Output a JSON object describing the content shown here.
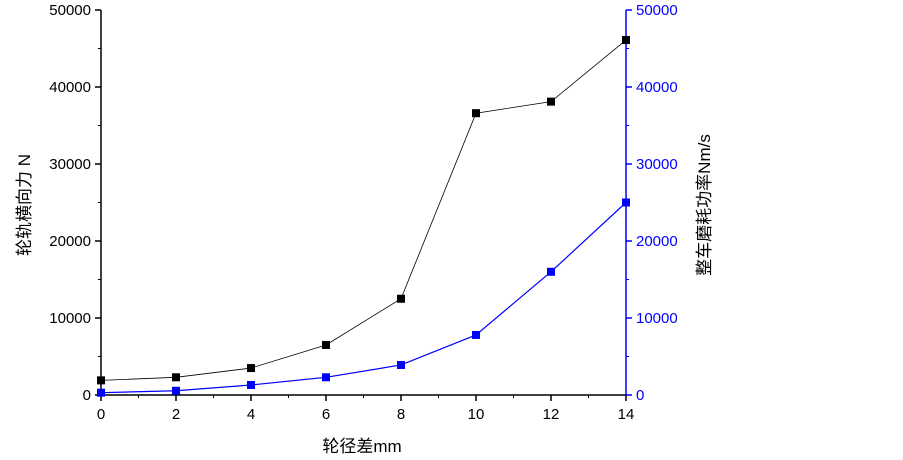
{
  "chart_data": {
    "type": "line",
    "xlabel": "轮径差mm",
    "ylabel_left": "轮轨横向力 N",
    "ylabel_right": "整车磨耗功率Nm/s",
    "xlim": [
      0,
      14
    ],
    "ylim_left": [
      0,
      50000
    ],
    "ylim_right": [
      0,
      50000
    ],
    "x_ticks": [
      "0",
      "2",
      "4",
      "6",
      "8",
      "10",
      "12",
      "14"
    ],
    "y_ticks_left": [
      "0",
      "10000",
      "20000",
      "30000",
      "40000",
      "50000"
    ],
    "y_ticks_right": [
      "0",
      "10000",
      "20000",
      "30000",
      "40000",
      "50000"
    ],
    "grid": false,
    "legend": "none",
    "series": [
      {
        "axis": "left",
        "color": "#000000",
        "marker": "square",
        "x": [
          0,
          2,
          4,
          6,
          8,
          10,
          12,
          14
        ],
        "values": [
          1900,
          2300,
          3500,
          6500,
          12500,
          36600,
          38100,
          46100
        ]
      },
      {
        "axis": "right",
        "color": "#0000ff",
        "marker": "square",
        "x": [
          0,
          2,
          4,
          6,
          8,
          10,
          12,
          14
        ],
        "values": [
          300,
          550,
          1300,
          2300,
          3900,
          7800,
          16000,
          25000
        ]
      }
    ]
  }
}
